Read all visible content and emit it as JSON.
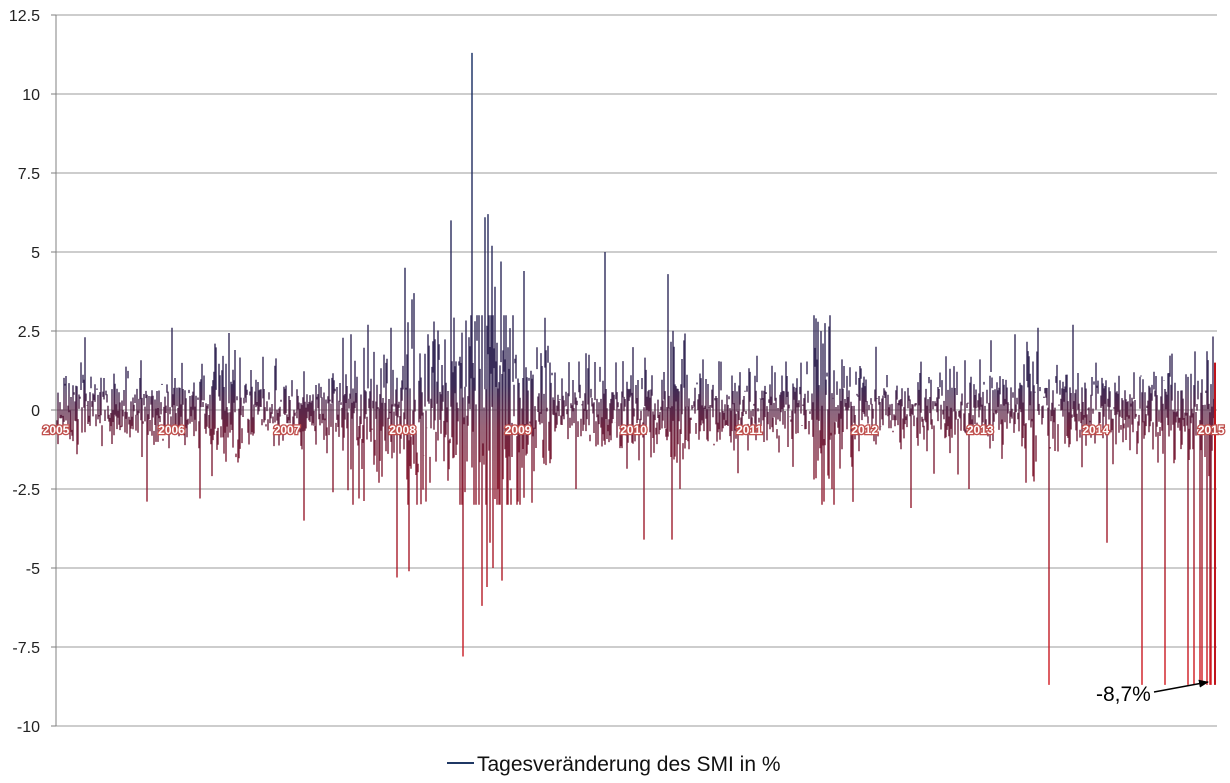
{
  "chart_data": {
    "type": "line",
    "title": "",
    "xlabel": "",
    "ylabel": "",
    "ylim": [
      -10,
      12.5
    ],
    "yticks": [
      12.5,
      10,
      7.5,
      5,
      2.5,
      0,
      -2.5,
      -5,
      -7.5,
      -10
    ],
    "ytick_labels": [
      "12.5",
      "10",
      "7.5",
      "5",
      "2.5",
      "0",
      "-2.5",
      "-5",
      "-7.5",
      "-10"
    ],
    "xlim": [
      2005.0,
      2015.05
    ],
    "xticks": [
      2005,
      2006,
      2007,
      2008,
      2009,
      2010,
      2011,
      2012,
      2013,
      2014,
      2015
    ],
    "xtick_labels": [
      "2005",
      "2006",
      "2007",
      "2008",
      "2009",
      "2010",
      "2011",
      "2012",
      "2013",
      "2014",
      "2015"
    ],
    "grid": true,
    "colors": {
      "positive": "#1f3864",
      "negative": "#c0141c",
      "grid": "#9b9b9b",
      "axis": "#7f7f7f"
    },
    "series": [
      {
        "name": "Tagesveränderung des SMI in %",
        "x": [
          2005.0,
          2005.25,
          2005.5,
          2005.79,
          2006.0,
          2006.25,
          2006.38,
          2006.4,
          2006.42,
          2006.46,
          2006.55,
          2006.7,
          2006.9,
          2007.15,
          2007.15,
          2007.4,
          2007.55,
          2007.62,
          2007.7,
          2007.8,
          2007.86,
          2007.9,
          2007.95,
          2008.02,
          2008.05,
          2008.06,
          2008.08,
          2008.1,
          2008.2,
          2008.22,
          2008.24,
          2008.27,
          2008.3,
          2008.42,
          2008.52,
          2008.6,
          2008.69,
          2008.71,
          2008.73,
          2008.74,
          2008.76,
          2008.77,
          2008.78,
          2008.8,
          2008.82,
          2008.85,
          2008.86,
          2008.88,
          2008.9,
          2008.92,
          2008.95,
          2008.96,
          2009.0,
          2009.05,
          2009.12,
          2009.2,
          2009.22,
          2009.26,
          2009.5,
          2009.75,
          2010.09,
          2010.3,
          2010.33,
          2010.35,
          2010.4,
          2010.6,
          2010.9,
          2011.2,
          2011.38,
          2011.45,
          2011.56,
          2011.58,
          2011.6,
          2011.62,
          2011.65,
          2011.7,
          2011.72,
          2011.8,
          2011.9,
          2012.1,
          2012.4,
          2012.7,
          2012.9,
          2013.0,
          2013.2,
          2013.3,
          2013.4,
          2013.42,
          2013.46,
          2013.5,
          2013.6,
          2013.8,
          2014.0,
          2014.1,
          2014.4,
          2014.6,
          2014.8,
          2014.85,
          2014.9,
          2014.92,
          2014.96,
          2014.99,
          2015.0,
          2015.03,
          2015.05
        ],
        "values": [
          0.2,
          2.3,
          -0.8,
          -2.9,
          2.6,
          -2.8,
          2.1,
          -1.1,
          1.1,
          -0.6,
          1.9,
          -0.7,
          1.4,
          -3.5,
          1.7,
          -2.6,
          2.4,
          -2.8,
          2.7,
          -2.3,
          1.1,
          2.6,
          -5.3,
          4.5,
          -1.4,
          -5.1,
          3.5,
          3.7,
          -2.9,
          2.4,
          -2.3,
          2.8,
          0.9,
          6.0,
          -7.8,
          11.3,
          -6.2,
          6.1,
          -5.6,
          6.2,
          -4.2,
          5.2,
          -5.0,
          3.9,
          -3.0,
          4.7,
          -5.4,
          2.5,
          -1.4,
          1.3,
          -0.9,
          2.7,
          -2.9,
          4.4,
          -1.2,
          1.8,
          -1.7,
          0.7,
          -2.5,
          5.0,
          -4.1,
          4.3,
          -4.1,
          2.0,
          -2.5,
          1.6,
          -2.0,
          1.4,
          -1.8,
          1.5,
          -2.2,
          2.9,
          -1.6,
          2.5,
          -2.9,
          1.9,
          -2.5,
          1.6,
          -1.2,
          2.0,
          -3.1,
          1.7,
          -2.5,
          1.6,
          -1.1,
          2.4,
          -2.3,
          1.7,
          -2.1,
          2.6,
          -8.7,
          2.7,
          1.5,
          -4.2,
          -8.7,
          -8.7,
          -8.7,
          -8.7,
          -8.7,
          -8.7,
          -8.7,
          -8.7,
          -8.7,
          -8.7,
          -8.7
        ]
      }
    ],
    "legend": {
      "label": "Tagesveränderung des SMI in %",
      "position": "bottom"
    },
    "annotations": [
      {
        "text": "-8,7%",
        "x": 2015.0,
        "y": -8.7
      }
    ]
  }
}
